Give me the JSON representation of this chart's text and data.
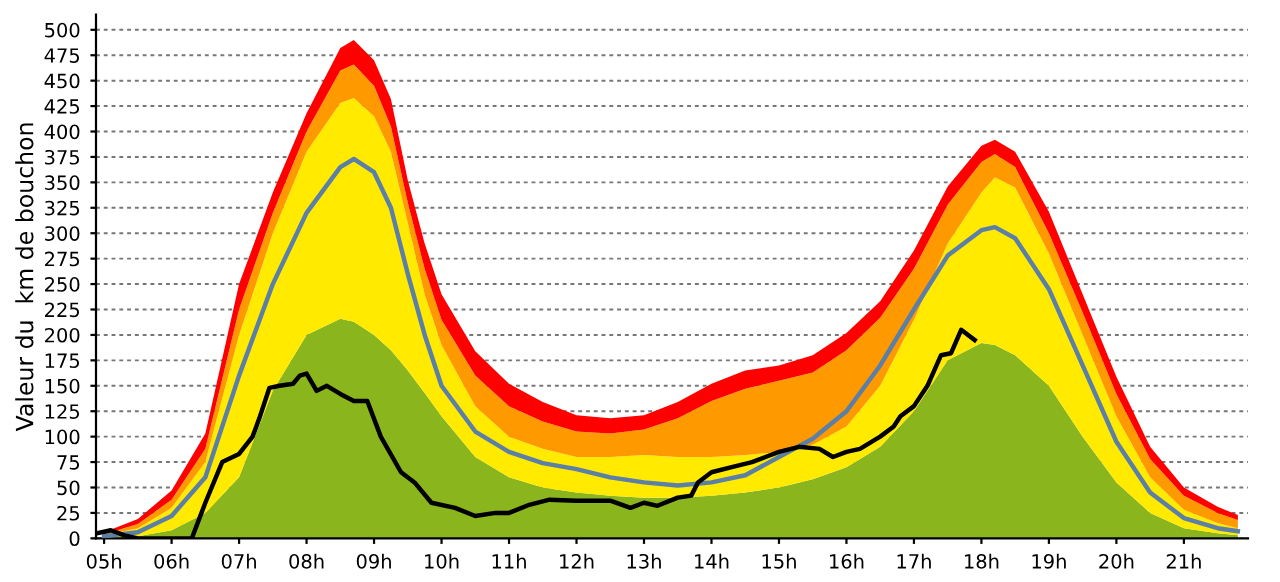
{
  "chart_data": {
    "type": "area",
    "stacked": true,
    "ylabel": "Valeur du  km de bouchon",
    "x": [
      5.0,
      5.5,
      6.0,
      6.5,
      7.0,
      7.5,
      8.0,
      8.5,
      8.7,
      9.0,
      9.25,
      9.5,
      9.75,
      10.0,
      10.5,
      11,
      11.5,
      12,
      12.5,
      13,
      13.5,
      14,
      14.5,
      15,
      15.5,
      16,
      16.5,
      17,
      17.5,
      18,
      18.2,
      18.5,
      19,
      19.5,
      20,
      20.5,
      21,
      21.5,
      21.8
    ],
    "series": [
      {
        "color": "#8ab51c",
        "values": [
          0,
          2,
          8,
          25,
          60,
          145,
          200,
          216,
          213,
          200,
          185,
          165,
          143,
          120,
          80,
          60,
          50,
          45,
          42,
          40,
          40,
          42,
          45,
          50,
          58,
          70,
          90,
          125,
          175,
          192,
          190,
          180,
          150,
          100,
          55,
          25,
          10,
          5,
          3
        ]
      },
      {
        "color": "#ffea00",
        "values": [
          3,
          8,
          22,
          50,
          140,
          155,
          180,
          212,
          220,
          215,
          195,
          145,
          97,
          70,
          50,
          40,
          38,
          35,
          38,
          42,
          40,
          38,
          37,
          35,
          34,
          40,
          60,
          90,
          115,
          148,
          165,
          165,
          130,
          100,
          65,
          35,
          18,
          10,
          7
        ]
      },
      {
        "color": "#ff9900",
        "values": [
          1,
          4,
          8,
          13,
          25,
          20,
          20,
          32,
          33,
          30,
          25,
          20,
          25,
          25,
          30,
          30,
          27,
          25,
          23,
          25,
          38,
          55,
          65,
          70,
          71,
          75,
          67,
          50,
          38,
          30,
          23,
          20,
          20,
          22,
          22,
          18,
          14,
          10,
          8
        ]
      },
      {
        "color": "#ff0000",
        "values": [
          2,
          5,
          9,
          15,
          25,
          20,
          18,
          22,
          24,
          25,
          27,
          22,
          25,
          25,
          24,
          22,
          19,
          16,
          15,
          14,
          16,
          17,
          18,
          15,
          17,
          17,
          16,
          18,
          18,
          16,
          14,
          15,
          21,
          18,
          17,
          12,
          8,
          6,
          5
        ]
      },
      {
        "type": "line",
        "color": "#5b7fa6",
        "x": [
          5.0,
          5.5,
          6.0,
          6.5,
          7.0,
          7.5,
          8.0,
          8.5,
          8.7,
          9.0,
          9.25,
          9.5,
          9.75,
          10.0,
          10.5,
          11,
          11.5,
          12,
          12.5,
          13,
          13.5,
          14,
          14.5,
          15,
          15.5,
          16,
          16.5,
          17,
          17.5,
          18,
          18.2,
          18.5,
          19,
          19.5,
          20,
          20.5,
          21,
          21.5,
          21.8
        ],
        "values": [
          2,
          6,
          22,
          60,
          160,
          250,
          320,
          365,
          373,
          360,
          325,
          260,
          200,
          150,
          105,
          85,
          74,
          68,
          60,
          55,
          52,
          55,
          62,
          80,
          98,
          125,
          170,
          225,
          278,
          303,
          306,
          295,
          245,
          170,
          95,
          45,
          20,
          10,
          7
        ]
      },
      {
        "type": "line",
        "color": "#000000",
        "x": [
          4.9,
          5.1,
          5.3,
          5.5,
          6.3,
          6.5,
          6.75,
          7.0,
          7.2,
          7.3,
          7.45,
          7.6,
          7.8,
          7.9,
          8.0,
          8.15,
          8.3,
          8.5,
          8.7,
          8.9,
          9.1,
          9.4,
          9.6,
          9.85,
          10.2,
          10.5,
          10.8,
          11.0,
          11.3,
          11.6,
          12.0,
          12.5,
          12.8,
          13.0,
          13.2,
          13.5,
          13.7,
          13.8,
          14.0,
          14.3,
          14.6,
          14.8,
          15.0,
          15.3,
          15.6,
          15.8,
          16.0,
          16.2,
          16.5,
          16.7,
          16.8,
          17.0,
          17.2,
          17.4,
          17.55,
          17.7,
          17.9
        ],
        "values": [
          5,
          8,
          3,
          0,
          0,
          35,
          75,
          83,
          100,
          118,
          148,
          150,
          152,
          160,
          162,
          145,
          150,
          142,
          135,
          135,
          100,
          65,
          55,
          35,
          30,
          22,
          25,
          25,
          33,
          38,
          37,
          37,
          30,
          35,
          32,
          40,
          42,
          55,
          65,
          70,
          75,
          80,
          85,
          90,
          88,
          80,
          85,
          88,
          100,
          110,
          120,
          130,
          150,
          180,
          182,
          205,
          195
        ]
      }
    ],
    "xlim": [
      4.88,
      21.95
    ],
    "ylim": [
      0,
      515
    ],
    "xticks": [
      {
        "value": 5,
        "label": "05h"
      },
      {
        "value": 6,
        "label": "06h"
      },
      {
        "value": 7,
        "label": "07h"
      },
      {
        "value": 8,
        "label": "08h"
      },
      {
        "value": 9,
        "label": "09h"
      },
      {
        "value": 10,
        "label": "10h"
      },
      {
        "value": 11,
        "label": "11h"
      },
      {
        "value": 12,
        "label": "12h"
      },
      {
        "value": 13,
        "label": "13h"
      },
      {
        "value": 14,
        "label": "14h"
      },
      {
        "value": 15,
        "label": "15h"
      },
      {
        "value": 16,
        "label": "16h"
      },
      {
        "value": 17,
        "label": "17h"
      },
      {
        "value": 18,
        "label": "18h"
      },
      {
        "value": 19,
        "label": "19h"
      },
      {
        "value": 20,
        "label": "20h"
      },
      {
        "value": 21,
        "label": "21h"
      }
    ],
    "yticks": [
      0,
      25,
      50,
      75,
      100,
      125,
      150,
      175,
      200,
      225,
      250,
      275,
      300,
      325,
      350,
      375,
      400,
      425,
      450,
      475,
      500
    ],
    "grid": "y",
    "legend": false,
    "marker": "none",
    "line_style": "solid"
  }
}
